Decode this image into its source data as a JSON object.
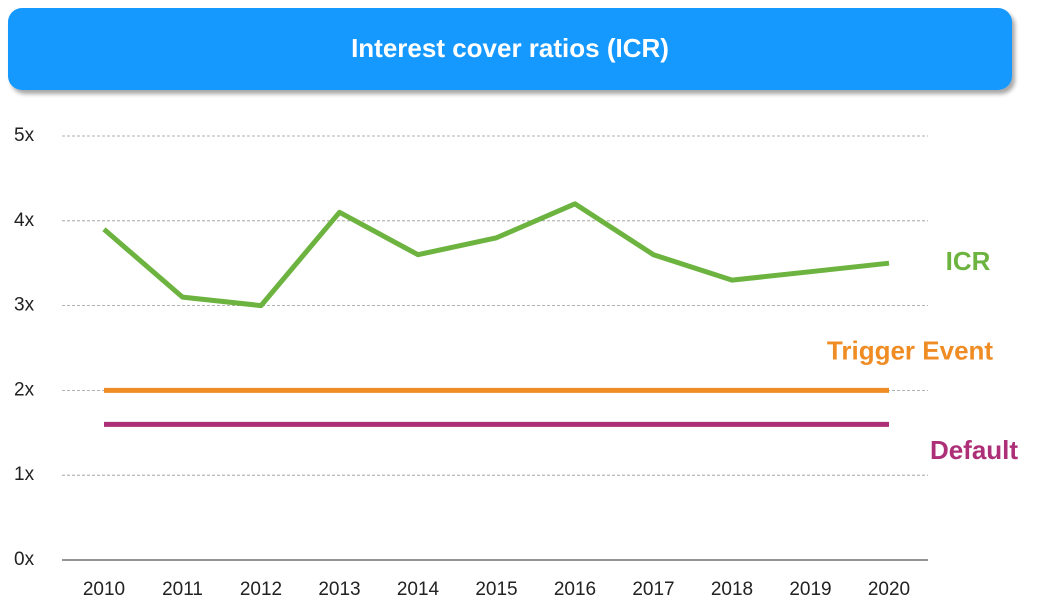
{
  "chart_data": {
    "type": "line",
    "title": "Interest cover ratios (ICR)",
    "categories": [
      "2010",
      "2011",
      "2012",
      "2013",
      "2014",
      "2015",
      "2016",
      "2017",
      "2018",
      "2019",
      "2020"
    ],
    "series": [
      {
        "name": "ICR",
        "color": "#6db33f",
        "values": [
          3.9,
          3.1,
          3.0,
          4.1,
          3.6,
          3.8,
          4.2,
          3.6,
          3.3,
          3.4,
          3.5
        ]
      },
      {
        "name": "Trigger Event",
        "color": "#f08c24",
        "values": [
          2,
          2,
          2,
          2,
          2,
          2,
          2,
          2,
          2,
          2,
          2
        ]
      },
      {
        "name": "Default",
        "color": "#ad2f77",
        "values": [
          1.6,
          1.6,
          1.6,
          1.6,
          1.6,
          1.6,
          1.6,
          1.6,
          1.6,
          1.6,
          1.6
        ]
      }
    ],
    "ylim": [
      0,
      5
    ],
    "yticks": [
      {
        "value": 0,
        "label": "0x"
      },
      {
        "value": 1,
        "label": "1x"
      },
      {
        "value": 2,
        "label": "2x"
      },
      {
        "value": 3,
        "label": "3x"
      },
      {
        "value": 4,
        "label": "4x"
      },
      {
        "value": 5,
        "label": "5x"
      }
    ],
    "grid": true
  }
}
